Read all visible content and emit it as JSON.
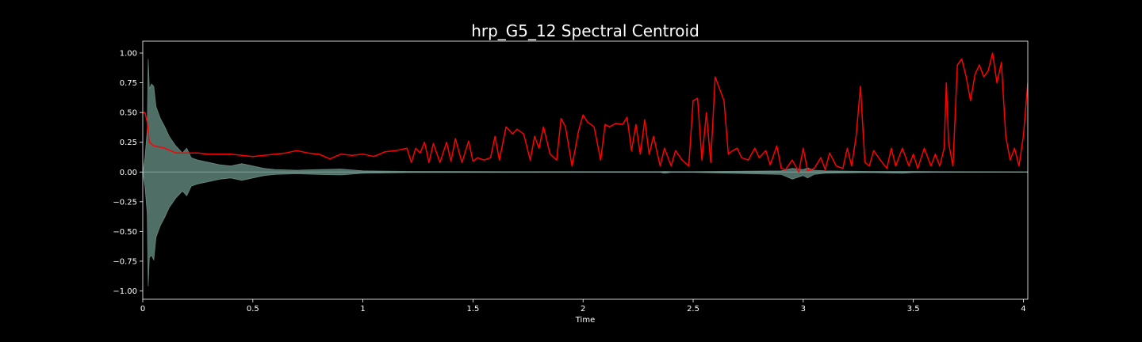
{
  "chart_data": {
    "type": "line",
    "title": "hrp_G5_12 Spectral Centroid",
    "xlabel": "Time",
    "ylabel": "",
    "xlim": [
      0,
      4.02
    ],
    "ylim": [
      -1.07,
      1.1
    ],
    "xticks": [
      0,
      0.5,
      1,
      1.5,
      2,
      2.5,
      3,
      3.5,
      4
    ],
    "xtick_labels": [
      "0",
      "0.5",
      "1",
      "1.5",
      "2",
      "2.5",
      "3",
      "3.5",
      "4"
    ],
    "yticks": [
      1.0,
      0.75,
      0.5,
      0.25,
      0.0,
      -0.25,
      -0.5,
      -0.75,
      -1.0
    ],
    "ytick_labels": [
      "1.00",
      "0.75",
      "0.50",
      "0.25",
      "0.00",
      "−0.25",
      "−0.50",
      "−0.75",
      "−1.00"
    ],
    "grid": false,
    "colors": {
      "background": "#000000",
      "waveform": "#4e6e66",
      "waveform_edge": "#7fa69c",
      "centroid": "#ff0000",
      "axes": "#ffffff"
    },
    "series": [
      {
        "kind": "waveform-envelope",
        "x": [
          0,
          0.01,
          0.02,
          0.025,
          0.03,
          0.04,
          0.05,
          0.06,
          0.08,
          0.1,
          0.12,
          0.15,
          0.18,
          0.2,
          0.22,
          0.25,
          0.3,
          0.35,
          0.4,
          0.45,
          0.5,
          0.55,
          0.6,
          0.7,
          0.8,
          0.9,
          1.0,
          1.2,
          1.5,
          2.0,
          2.35,
          2.37,
          2.4,
          2.5,
          2.9,
          2.95,
          3.0,
          3.02,
          3.05,
          3.1,
          3.3,
          3.45,
          3.5,
          3.6,
          4.02
        ],
        "upper": [
          0.0,
          0.12,
          0.35,
          0.95,
          0.7,
          0.74,
          0.72,
          0.55,
          0.45,
          0.38,
          0.3,
          0.22,
          0.16,
          0.2,
          0.12,
          0.1,
          0.08,
          0.06,
          0.05,
          0.07,
          0.05,
          0.03,
          0.02,
          0.015,
          0.02,
          0.025,
          0.01,
          0.005,
          0.004,
          0.003,
          0.003,
          0.005,
          0.003,
          0.003,
          0.01,
          0.03,
          0.02,
          0.035,
          0.015,
          0.01,
          0.005,
          0.005,
          0.005,
          0.003,
          0.002
        ],
        "lower": [
          0.0,
          -0.12,
          -0.35,
          -0.96,
          -0.72,
          -0.7,
          -0.74,
          -0.55,
          -0.45,
          -0.38,
          -0.3,
          -0.22,
          -0.16,
          -0.2,
          -0.12,
          -0.1,
          -0.08,
          -0.06,
          -0.05,
          -0.07,
          -0.05,
          -0.03,
          -0.02,
          -0.015,
          -0.02,
          -0.025,
          -0.01,
          -0.005,
          -0.004,
          -0.003,
          -0.003,
          -0.01,
          -0.003,
          -0.003,
          -0.02,
          -0.06,
          -0.03,
          -0.05,
          -0.02,
          -0.01,
          -0.005,
          -0.01,
          -0.005,
          -0.003,
          -0.002
        ]
      },
      {
        "kind": "centroid",
        "x": [
          0.0,
          0.01,
          0.02,
          0.03,
          0.05,
          0.1,
          0.15,
          0.2,
          0.25,
          0.3,
          0.4,
          0.5,
          0.6,
          0.65,
          0.7,
          0.75,
          0.8,
          0.85,
          0.9,
          0.95,
          1.0,
          1.05,
          1.1,
          1.15,
          1.2,
          1.22,
          1.24,
          1.26,
          1.28,
          1.3,
          1.32,
          1.35,
          1.38,
          1.4,
          1.42,
          1.45,
          1.48,
          1.5,
          1.52,
          1.55,
          1.58,
          1.6,
          1.62,
          1.65,
          1.68,
          1.7,
          1.73,
          1.76,
          1.78,
          1.8,
          1.82,
          1.85,
          1.88,
          1.9,
          1.92,
          1.95,
          1.98,
          2.0,
          2.02,
          2.05,
          2.08,
          2.1,
          2.12,
          2.15,
          2.18,
          2.2,
          2.22,
          2.24,
          2.26,
          2.28,
          2.3,
          2.32,
          2.35,
          2.37,
          2.4,
          2.42,
          2.45,
          2.48,
          2.5,
          2.52,
          2.54,
          2.56,
          2.58,
          2.6,
          2.62,
          2.64,
          2.66,
          2.68,
          2.7,
          2.72,
          2.75,
          2.78,
          2.8,
          2.83,
          2.85,
          2.88,
          2.9,
          2.92,
          2.95,
          2.98,
          3.0,
          3.02,
          3.05,
          3.08,
          3.1,
          3.12,
          3.15,
          3.18,
          3.2,
          3.22,
          3.24,
          3.26,
          3.28,
          3.3,
          3.32,
          3.35,
          3.38,
          3.4,
          3.42,
          3.45,
          3.48,
          3.5,
          3.52,
          3.55,
          3.58,
          3.6,
          3.62,
          3.64,
          3.65,
          3.66,
          3.67,
          3.68,
          3.7,
          3.72,
          3.74,
          3.76,
          3.78,
          3.8,
          3.82,
          3.84,
          3.86,
          3.88,
          3.9,
          3.92,
          3.94,
          3.96,
          3.98,
          4.0,
          4.02
        ],
        "y": [
          0.5,
          0.5,
          0.42,
          0.25,
          0.22,
          0.2,
          0.16,
          0.16,
          0.16,
          0.15,
          0.15,
          0.13,
          0.15,
          0.16,
          0.18,
          0.16,
          0.15,
          0.11,
          0.15,
          0.14,
          0.15,
          0.13,
          0.17,
          0.18,
          0.2,
          0.08,
          0.2,
          0.16,
          0.25,
          0.08,
          0.24,
          0.08,
          0.25,
          0.09,
          0.28,
          0.08,
          0.26,
          0.09,
          0.12,
          0.1,
          0.12,
          0.3,
          0.1,
          0.38,
          0.32,
          0.36,
          0.32,
          0.1,
          0.3,
          0.2,
          0.38,
          0.15,
          0.1,
          0.45,
          0.38,
          0.05,
          0.35,
          0.48,
          0.42,
          0.38,
          0.1,
          0.4,
          0.38,
          0.41,
          0.4,
          0.46,
          0.18,
          0.4,
          0.15,
          0.44,
          0.15,
          0.3,
          0.05,
          0.2,
          0.05,
          0.18,
          0.1,
          0.05,
          0.6,
          0.62,
          0.1,
          0.5,
          0.08,
          0.8,
          0.7,
          0.6,
          0.15,
          0.18,
          0.2,
          0.12,
          0.1,
          0.2,
          0.12,
          0.18,
          0.06,
          0.22,
          0.03,
          0.02,
          0.1,
          0.0,
          0.2,
          0.01,
          0.03,
          0.12,
          0.02,
          0.16,
          0.05,
          0.03,
          0.2,
          0.05,
          0.3,
          0.72,
          0.08,
          0.05,
          0.18,
          0.1,
          0.03,
          0.2,
          0.05,
          0.2,
          0.05,
          0.15,
          0.03,
          0.2,
          0.05,
          0.15,
          0.05,
          0.2,
          0.75,
          0.25,
          0.15,
          0.05,
          0.9,
          0.95,
          0.8,
          0.6,
          0.82,
          0.9,
          0.8,
          0.85,
          1.0,
          0.75,
          0.92,
          0.3,
          0.1,
          0.2,
          0.05,
          0.3,
          0.75
        ]
      }
    ]
  }
}
